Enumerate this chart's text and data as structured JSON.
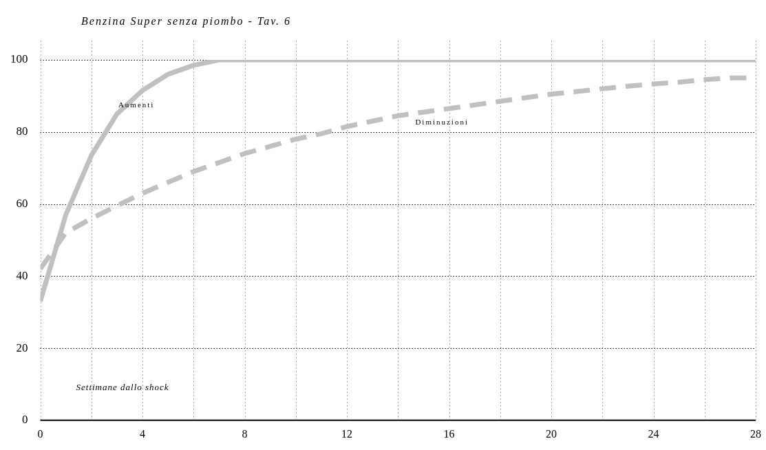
{
  "chart_data": {
    "type": "line",
    "title": "Benzina Super senza piombo - Tav. 6",
    "xlabel": "Settimane dallo shock",
    "x": [
      0,
      1,
      2,
      3,
      4,
      5,
      6,
      7,
      8,
      9,
      10,
      11,
      12,
      13,
      14,
      15,
      16,
      17,
      18,
      19,
      20,
      21,
      22,
      23,
      24,
      25,
      26,
      27,
      28
    ],
    "series": [
      {
        "name": "Aumenti",
        "color": "#c0c0c0",
        "line_style": "solid",
        "values": [
          33,
          57,
          73.5,
          85,
          91.5,
          96,
          98.5,
          100,
          100,
          100,
          100,
          100,
          100,
          100,
          100,
          100,
          100,
          100,
          100,
          100,
          100,
          100,
          100,
          100,
          100,
          100,
          100,
          100,
          100
        ]
      },
      {
        "name": "Diminuzioni",
        "color": "#c0c0c0",
        "line_style": "dashed",
        "values": [
          42,
          52,
          56,
          59.5,
          63,
          66,
          69,
          71.5,
          74,
          76,
          78,
          79.5,
          81.5,
          83,
          84.5,
          85.5,
          86.5,
          87.5,
          88.5,
          89.5,
          90.5,
          91.2,
          92,
          92.7,
          93.3,
          93.8,
          94.5,
          95,
          95
        ]
      }
    ],
    "xlim": [
      0,
      28
    ],
    "xticks": [
      0,
      {
        "value": 2,
        "label": null
      },
      4,
      {
        "value": 6,
        "label": null
      },
      8,
      {
        "value": 10,
        "label": null
      },
      12,
      {
        "value": 14,
        "label": null
      },
      16,
      {
        "value": 18,
        "label": null
      },
      20,
      {
        "value": 22,
        "label": null
      },
      24,
      {
        "value": 26,
        "label": null
      },
      28
    ],
    "ylim": [
      0,
      100
    ],
    "yticks": [
      0,
      20,
      40,
      60,
      80,
      100
    ],
    "grid": true,
    "legend": false,
    "marker": "none"
  }
}
